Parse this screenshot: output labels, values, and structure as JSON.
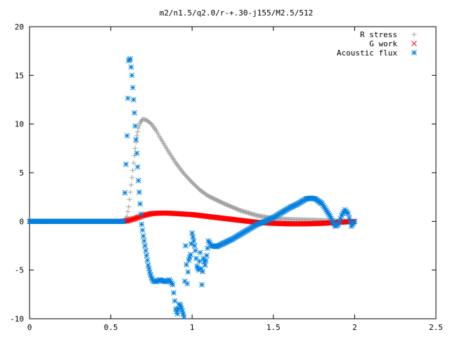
{
  "chart_data": {
    "type": "scatter",
    "title": "m2/n1.5/q2.0/r-+.30-j155/M2.5/512",
    "xlabel": "",
    "ylabel": "",
    "xlim": [
      0,
      2.5
    ],
    "ylim": [
      -10,
      20
    ],
    "x_ticks": [
      "0",
      "0.5",
      "1",
      "1.5",
      "2",
      "2.5"
    ],
    "y_ticks": [
      "-10",
      "-5",
      "0",
      "5",
      "10",
      "15",
      "20"
    ],
    "grid": false,
    "legend_position": "top-right",
    "series": [
      {
        "name": "R stress",
        "marker": "plus",
        "color": "#a0a0a0",
        "x": [
          0.0,
          0.1,
          0.2,
          0.3,
          0.4,
          0.5,
          0.55,
          0.58,
          0.6,
          0.61,
          0.62,
          0.63,
          0.64,
          0.65,
          0.66,
          0.67,
          0.68,
          0.69,
          0.7,
          0.72,
          0.75,
          0.78,
          0.8,
          0.85,
          0.9,
          0.95,
          1.0,
          1.05,
          1.1,
          1.2,
          1.3,
          1.4,
          1.5,
          1.6,
          1.7,
          1.8,
          1.9,
          2.0
        ],
        "y": [
          0,
          0,
          0,
          0,
          0,
          0,
          0,
          0,
          0.5,
          1.5,
          3.0,
          4.5,
          6.0,
          7.5,
          8.8,
          9.6,
          10.1,
          10.4,
          10.5,
          10.4,
          10.0,
          9.3,
          8.7,
          7.3,
          6.0,
          4.9,
          4.0,
          3.2,
          2.6,
          1.8,
          1.1,
          0.6,
          0.3,
          0.2,
          0.15,
          0.1,
          0.05,
          0.0
        ]
      },
      {
        "name": "G work",
        "marker": "cross",
        "color": "#ff0000",
        "x": [
          0.0,
          0.1,
          0.2,
          0.3,
          0.4,
          0.5,
          0.55,
          0.6,
          0.65,
          0.7,
          0.75,
          0.8,
          0.85,
          0.9,
          0.95,
          1.0,
          1.1,
          1.2,
          1.3,
          1.4,
          1.5,
          1.6,
          1.7,
          1.8,
          1.9,
          2.0
        ],
        "y": [
          0,
          0,
          0,
          0,
          0,
          0,
          0,
          0.05,
          0.3,
          0.6,
          0.8,
          0.85,
          0.85,
          0.8,
          0.75,
          0.7,
          0.5,
          0.3,
          0.1,
          -0.1,
          -0.2,
          -0.25,
          -0.25,
          -0.2,
          -0.1,
          0.0
        ]
      },
      {
        "name": "Acoustic flux",
        "marker": "star",
        "color": "#0080e0",
        "x": [
          0.0,
          0.1,
          0.2,
          0.3,
          0.4,
          0.5,
          0.55,
          0.58,
          0.6,
          0.61,
          0.62,
          0.63,
          0.64,
          0.65,
          0.66,
          0.67,
          0.68,
          0.69,
          0.7,
          0.71,
          0.72,
          0.73,
          0.74,
          0.75,
          0.76,
          0.78,
          0.8,
          0.82,
          0.84,
          0.86,
          0.88,
          0.9,
          0.91,
          0.92,
          0.93,
          0.94,
          0.95,
          0.96,
          0.97,
          0.98,
          0.99,
          1.0,
          1.01,
          1.02,
          1.03,
          1.04,
          1.05,
          1.06,
          1.07,
          1.08,
          1.09,
          1.1,
          1.12,
          1.15,
          1.2,
          1.25,
          1.3,
          1.35,
          1.4,
          1.45,
          1.5,
          1.55,
          1.6,
          1.65,
          1.7,
          1.73,
          1.76,
          1.8,
          1.85,
          1.88,
          1.9,
          1.92,
          1.94,
          1.96,
          1.98,
          2.0
        ],
        "y": [
          0,
          0,
          0,
          0,
          0,
          0,
          0,
          0,
          8.8,
          16.5,
          16.7,
          15.0,
          12.5,
          9.8,
          7.0,
          4.2,
          1.8,
          -0.3,
          -1.5,
          -2.5,
          -3.5,
          -4.5,
          -5.2,
          -5.8,
          -6.1,
          -6.2,
          -6.0,
          -6.1,
          -6.2,
          -6.0,
          -6.5,
          -9.0,
          -9.5,
          -8.5,
          -8.7,
          -9.2,
          -9.8,
          -2.5,
          -6.4,
          -4.0,
          -3.4,
          -1.2,
          -2.0,
          -3.0,
          -4.6,
          -5.0,
          -3.2,
          -6.5,
          -3.8,
          -4.5,
          -3.5,
          -2.0,
          -2.5,
          -2.6,
          -2.2,
          -1.8,
          -1.3,
          -0.8,
          -0.3,
          0.0,
          0.4,
          0.9,
          1.4,
          1.8,
          2.3,
          2.4,
          2.3,
          1.8,
          0.5,
          -0.5,
          -0.3,
          0.6,
          1.2,
          0.8,
          -0.5,
          0.0
        ]
      }
    ]
  }
}
